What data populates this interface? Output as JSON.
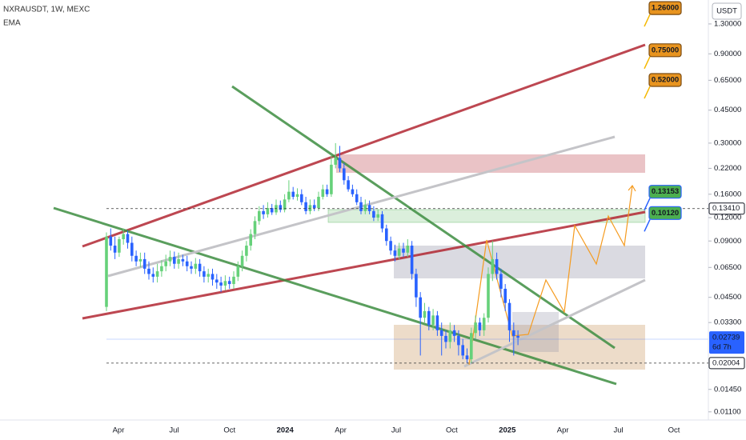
{
  "chart_data": {
    "type": "candlestick",
    "title": "NXRAUSDT, 1W, MEXC",
    "indicator": "EMA",
    "currency": "USDT",
    "log_scale": true,
    "up_color": "#66d17a",
    "down_color": "#2962ff",
    "ylim": [
      0.00995,
      1.745
    ],
    "yticks": [
      {
        "value": 1.3,
        "label": "1.30000"
      },
      {
        "value": 0.9,
        "label": "0.90000"
      },
      {
        "value": 0.65,
        "label": "0.65000"
      },
      {
        "value": 0.45,
        "label": "0.45000"
      },
      {
        "value": 0.3,
        "label": "0.30000"
      },
      {
        "value": 0.22,
        "label": "0.22000"
      },
      {
        "value": 0.16,
        "label": "0.16000"
      },
      {
        "value": 0.12,
        "label": "0.12000"
      },
      {
        "value": 0.09,
        "label": "0.09000"
      },
      {
        "value": 0.065,
        "label": "0.06500"
      },
      {
        "value": 0.045,
        "label": "0.04500"
      },
      {
        "value": 0.033,
        "label": "0.03300"
      },
      {
        "value": 0.0145,
        "label": "0.01450"
      },
      {
        "value": 0.011,
        "label": "0.01100"
      }
    ],
    "x_labels": [
      "Apr",
      "Jul",
      "Oct",
      "2024",
      "Apr",
      "Jul",
      "Oct",
      "2025",
      "Apr",
      "Jul",
      "Oct"
    ],
    "open": [
      0.04,
      0.095,
      0.085,
      0.078,
      0.092,
      0.098,
      0.088,
      0.075,
      0.07,
      0.072,
      0.064,
      0.06,
      0.058,
      0.062,
      0.066,
      0.07,
      0.074,
      0.068,
      0.072,
      0.07,
      0.066,
      0.064,
      0.068,
      0.062,
      0.058,
      0.06,
      0.056,
      0.054,
      0.052,
      0.055,
      0.053,
      0.058,
      0.066,
      0.075,
      0.085,
      0.098,
      0.115,
      0.13,
      0.125,
      0.135,
      0.128,
      0.14,
      0.132,
      0.15,
      0.165,
      0.155,
      0.16,
      0.145,
      0.13,
      0.14,
      0.135,
      0.155,
      0.17,
      0.16,
      0.23,
      0.25,
      0.22,
      0.19,
      0.17,
      0.16,
      0.145,
      0.13,
      0.14,
      0.13,
      0.12,
      0.125,
      0.105,
      0.09,
      0.08,
      0.075,
      0.082,
      0.078,
      0.085,
      0.06,
      0.045,
      0.035,
      0.038,
      0.032,
      0.036,
      0.03,
      0.028,
      0.026,
      0.03,
      0.028,
      0.025,
      0.022,
      0.021,
      0.029,
      0.033,
      0.03,
      0.035,
      0.06,
      0.072,
      0.06,
      0.05,
      0.042,
      0.03,
      0.028
    ],
    "high": [
      0.1,
      0.105,
      0.095,
      0.095,
      0.105,
      0.102,
      0.095,
      0.08,
      0.078,
      0.078,
      0.07,
      0.065,
      0.068,
      0.071,
      0.076,
      0.08,
      0.079,
      0.078,
      0.076,
      0.075,
      0.07,
      0.073,
      0.072,
      0.066,
      0.064,
      0.064,
      0.06,
      0.058,
      0.059,
      0.058,
      0.062,
      0.07,
      0.08,
      0.09,
      0.104,
      0.122,
      0.138,
      0.14,
      0.145,
      0.142,
      0.15,
      0.148,
      0.16,
      0.19,
      0.175,
      0.172,
      0.17,
      0.155,
      0.15,
      0.15,
      0.165,
      0.18,
      0.18,
      0.26,
      0.3,
      0.29,
      0.235,
      0.2,
      0.18,
      0.17,
      0.155,
      0.15,
      0.148,
      0.138,
      0.133,
      0.13,
      0.11,
      0.095,
      0.086,
      0.088,
      0.088,
      0.092,
      0.09,
      0.064,
      0.048,
      0.042,
      0.04,
      0.039,
      0.038,
      0.033,
      0.03,
      0.033,
      0.032,
      0.03,
      0.027,
      0.024,
      0.031,
      0.036,
      0.035,
      0.037,
      0.065,
      0.09,
      0.078,
      0.064,
      0.053,
      0.044,
      0.033,
      0.03
    ],
    "low": [
      0.038,
      0.08,
      0.072,
      0.074,
      0.086,
      0.082,
      0.07,
      0.066,
      0.065,
      0.06,
      0.056,
      0.054,
      0.054,
      0.058,
      0.062,
      0.066,
      0.064,
      0.064,
      0.066,
      0.062,
      0.06,
      0.06,
      0.058,
      0.054,
      0.054,
      0.052,
      0.05,
      0.048,
      0.049,
      0.05,
      0.05,
      0.055,
      0.062,
      0.07,
      0.08,
      0.092,
      0.11,
      0.118,
      0.12,
      0.124,
      0.124,
      0.128,
      0.128,
      0.145,
      0.15,
      0.148,
      0.14,
      0.125,
      0.125,
      0.13,
      0.13,
      0.15,
      0.155,
      0.155,
      0.22,
      0.21,
      0.18,
      0.165,
      0.155,
      0.14,
      0.125,
      0.125,
      0.125,
      0.115,
      0.115,
      0.1,
      0.085,
      0.076,
      0.07,
      0.072,
      0.074,
      0.074,
      0.056,
      0.04,
      0.022,
      0.033,
      0.03,
      0.03,
      0.028,
      0.022,
      0.024,
      0.024,
      0.026,
      0.022,
      0.021,
      0.02,
      0.02,
      0.027,
      0.028,
      0.028,
      0.033,
      0.055,
      0.056,
      0.045,
      0.038,
      0.026,
      0.022,
      0.025
    ],
    "close": [
      0.095,
      0.085,
      0.078,
      0.092,
      0.098,
      0.088,
      0.075,
      0.07,
      0.072,
      0.064,
      0.06,
      0.058,
      0.062,
      0.066,
      0.07,
      0.074,
      0.068,
      0.072,
      0.07,
      0.066,
      0.064,
      0.068,
      0.062,
      0.058,
      0.06,
      0.056,
      0.054,
      0.052,
      0.055,
      0.053,
      0.058,
      0.066,
      0.075,
      0.085,
      0.098,
      0.115,
      0.13,
      0.125,
      0.135,
      0.128,
      0.14,
      0.132,
      0.15,
      0.165,
      0.155,
      0.16,
      0.145,
      0.13,
      0.14,
      0.135,
      0.155,
      0.17,
      0.16,
      0.23,
      0.25,
      0.22,
      0.19,
      0.17,
      0.16,
      0.145,
      0.13,
      0.14,
      0.13,
      0.12,
      0.125,
      0.105,
      0.09,
      0.08,
      0.075,
      0.082,
      0.078,
      0.085,
      0.06,
      0.045,
      0.035,
      0.038,
      0.032,
      0.036,
      0.03,
      0.028,
      0.026,
      0.03,
      0.028,
      0.025,
      0.022,
      0.021,
      0.029,
      0.033,
      0.03,
      0.035,
      0.06,
      0.072,
      0.06,
      0.05,
      0.042,
      0.03,
      0.028,
      0.02739
    ],
    "price_lines": [
      {
        "value": 0.1341,
        "label": "0.13410"
      },
      {
        "value": 0.02004,
        "label": "0.02004"
      }
    ],
    "last_price": {
      "value": 0.02739,
      "label": "0.02739",
      "countdown": "6d 7h"
    },
    "targets": [
      {
        "value": 1.26,
        "label": "1.26000",
        "color": "#e8941f"
      },
      {
        "value": 0.75,
        "label": "0.75000",
        "color": "#e8941f"
      },
      {
        "value": 0.52,
        "label": "0.52000",
        "color": "#e8941f"
      },
      {
        "value": 0.13153,
        "label": "0.13153",
        "color": "#4caf50"
      },
      {
        "value": 0.1012,
        "label": "0.10120",
        "color": "#4caf50"
      }
    ]
  }
}
